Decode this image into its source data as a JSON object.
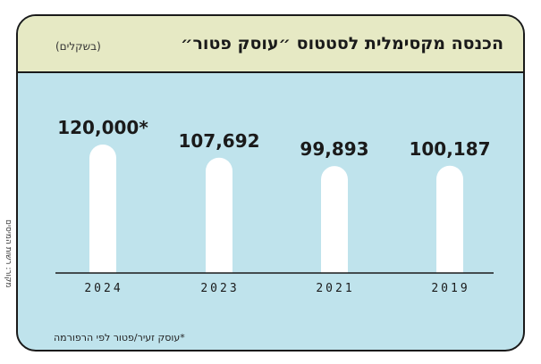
{
  "header": {
    "title": "הכנסה מקסימלית לסטטוס ״עוסק פטור״",
    "subtitle": "(בשקלים)"
  },
  "source": "מקור: רשות המיסים",
  "footnote": "*עוסק זעיר/פטור לפי הרפורמה",
  "chart_data": {
    "type": "bar",
    "title": "הכנסה מקסימלית לסטטוס ״עוסק פטור״",
    "subtitle": "(בשקלים)",
    "xlabel": "",
    "ylabel": "",
    "categories": [
      "2024",
      "2023",
      "2021",
      "2019"
    ],
    "values": [
      120000,
      107692,
      99893,
      100187
    ],
    "labels": [
      "120,000*",
      "107,692",
      "99,893",
      "100,187"
    ],
    "ylim": [
      0,
      160000
    ],
    "grid": false,
    "legend": "none",
    "bar_color": "#ffffff",
    "background_color": "#bfe3ec"
  }
}
